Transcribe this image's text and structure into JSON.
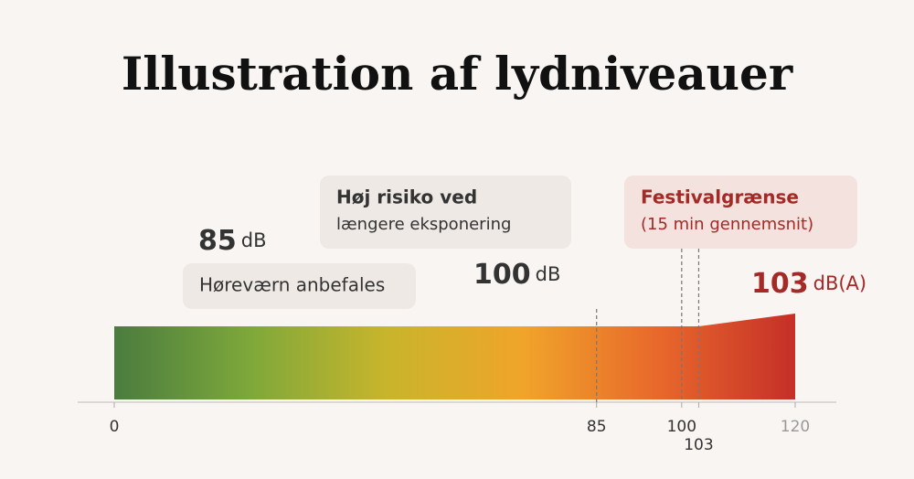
{
  "chart_data": {
    "type": "scale",
    "title": "Illustration af lydniveauer",
    "xlim": [
      0,
      120
    ],
    "xticks": [
      0,
      85,
      100,
      103,
      120
    ],
    "gradient_colors": [
      "#4a7c3f",
      "#7ea83a",
      "#c8b52c",
      "#f0a42a",
      "#e8682b",
      "#c52f28"
    ],
    "markers": [
      {
        "value": 85,
        "unit": "dB",
        "label": [
          "Høreværn anbefales"
        ],
        "color": "#333333"
      },
      {
        "value": 100,
        "unit": "dB",
        "label": [
          "Høj risiko ved",
          "længere eksponering"
        ],
        "color": "#333333"
      },
      {
        "value": 103,
        "unit": "dB(A)",
        "label": [
          "Festivalgrænse",
          "(15 min gennemsnit)"
        ],
        "color": "#a32a27"
      }
    ]
  }
}
